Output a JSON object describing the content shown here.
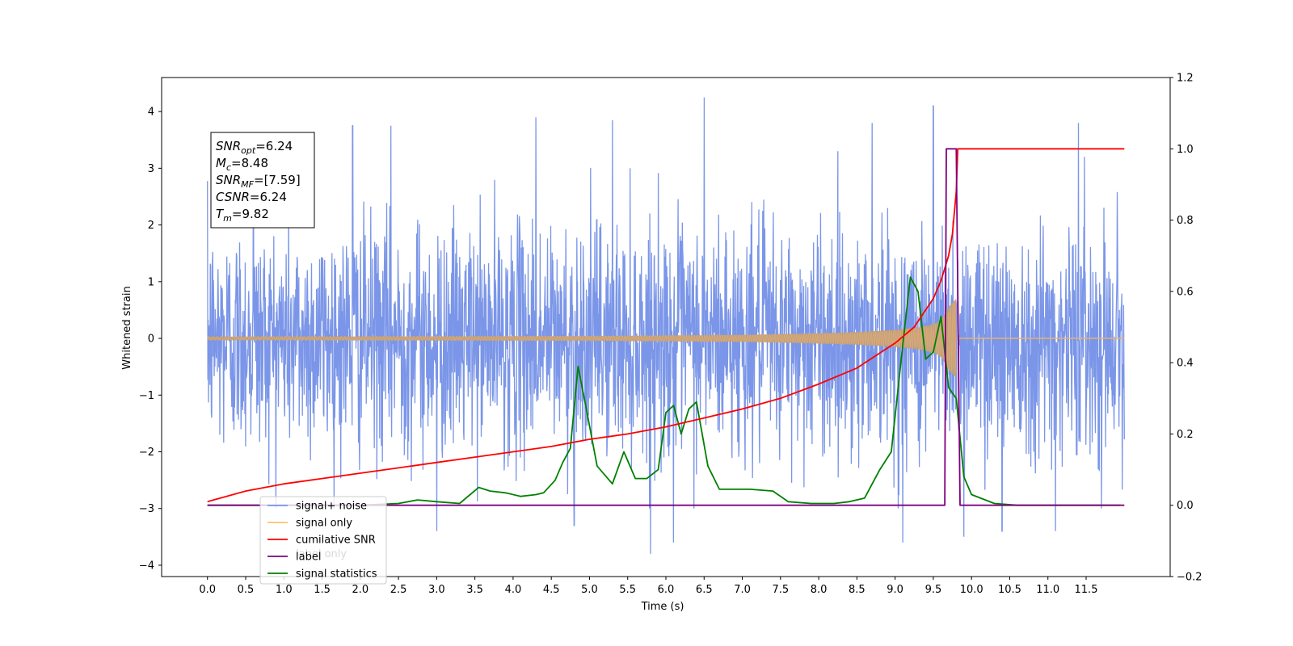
{
  "chart_data": {
    "type": "line",
    "xlabel": "Time (s)",
    "ylabel": "Whitened strain",
    "xlim": [
      -0.6,
      12.6
    ],
    "ylim": [
      -4.2,
      4.6
    ],
    "y2lim": [
      -0.2,
      1.2
    ],
    "x_ticks": [
      "0.0",
      "0.5",
      "1.0",
      "1.5",
      "2.0",
      "2.5",
      "3.0",
      "3.5",
      "4.0",
      "4.5",
      "5.0",
      "5.5",
      "6.0",
      "6.5",
      "7.0",
      "7.5",
      "8.0",
      "8.5",
      "9.0",
      "9.5",
      "10.0",
      "10.5",
      "11.0",
      "11.5"
    ],
    "y_ticks": [
      "4",
      "3",
      "2",
      "1",
      "0",
      "−1",
      "−2",
      "−3",
      "−4"
    ],
    "y2_ticks": [
      "1.2",
      "1.0",
      "0.8",
      "0.6",
      "0.4",
      "0.2",
      "0.0",
      "−0.2"
    ],
    "info_box": [
      {
        "name": "SNR",
        "sub": "opt",
        "value": "=6.24"
      },
      {
        "name": "M",
        "sub": "c",
        "value": "=8.48"
      },
      {
        "name": "SNR",
        "sub": "MF",
        "value": "=[7.59]"
      },
      {
        "name": "CSNR",
        "sub": "",
        "value": "=6.24"
      },
      {
        "name": "T",
        "sub": "m",
        "value": "=9.82"
      }
    ],
    "legend": {
      "placement": "lower-left",
      "items": [
        {
          "label": "signal+ noise",
          "color": "#7b96e8"
        },
        {
          "label": "signal only",
          "color": "#ffc36b"
        },
        {
          "label": "cumilative SNR",
          "color": "#ff0000"
        },
        {
          "label": "label",
          "color": "#800080"
        },
        {
          "label": "signal statistics",
          "color": "#008000"
        }
      ],
      "hidden_behind": "label only"
    },
    "series": [
      {
        "name": "signal+ noise",
        "axis": "left",
        "style": "noise",
        "x_range": [
          0.0,
          12.0
        ],
        "envelope_typical": [
          -2.6,
          3.0
        ],
        "x": [
          0.6,
          1.9,
          2.4,
          4.3,
          5.3,
          6.5,
          8.7,
          9.5,
          11.4,
          5.8,
          6.1,
          4.8,
          3.0,
          9.1,
          9.9,
          10.4,
          11.1
        ],
        "y": [
          3.5,
          3.75,
          3.75,
          3.9,
          3.85,
          4.25,
          3.8,
          4.1,
          3.8,
          -3.8,
          -3.6,
          -3.3,
          -3.4,
          -3.6,
          -3.5,
          -3.4,
          -3.4
        ]
      },
      {
        "name": "signal only",
        "axis": "left",
        "x": [
          0.0,
          5.0,
          7.0,
          8.0,
          8.5,
          9.0,
          9.3,
          9.5,
          9.6,
          9.7,
          9.8
        ],
        "amplitude": [
          0.03,
          0.04,
          0.06,
          0.09,
          0.11,
          0.15,
          0.19,
          0.25,
          0.32,
          0.55,
          0.7
        ]
      },
      {
        "name": "cumilative SNR",
        "axis": "right",
        "x": [
          0.0,
          0.5,
          1.0,
          1.5,
          2.0,
          2.5,
          3.0,
          3.5,
          4.0,
          4.5,
          5.0,
          5.5,
          6.0,
          6.5,
          7.0,
          7.5,
          8.0,
          8.5,
          9.0,
          9.25,
          9.5,
          9.6,
          9.7,
          9.75,
          9.8,
          9.82,
          12.0
        ],
        "y": [
          0.01,
          0.04,
          0.06,
          0.075,
          0.09,
          0.105,
          0.12,
          0.135,
          0.15,
          0.165,
          0.185,
          0.2,
          0.22,
          0.245,
          0.27,
          0.3,
          0.34,
          0.385,
          0.455,
          0.5,
          0.58,
          0.63,
          0.7,
          0.76,
          0.88,
          1.0,
          1.0
        ]
      },
      {
        "name": "label",
        "axis": "right",
        "x": [
          0.0,
          9.65,
          9.67,
          9.8,
          9.85,
          12.0
        ],
        "y": [
          0.0,
          0.0,
          1.0,
          1.0,
          0.0,
          0.0
        ]
      },
      {
        "name": "signal statistics",
        "axis": "right",
        "x": [
          0.0,
          2.0,
          2.5,
          2.75,
          3.0,
          3.3,
          3.55,
          3.7,
          3.9,
          4.1,
          4.3,
          4.4,
          4.55,
          4.65,
          4.75,
          4.85,
          4.95,
          5.1,
          5.3,
          5.45,
          5.6,
          5.75,
          5.9,
          6.0,
          6.1,
          6.2,
          6.3,
          6.4,
          6.55,
          6.7,
          6.9,
          7.1,
          7.4,
          7.6,
          7.9,
          8.2,
          8.4,
          8.6,
          8.8,
          8.95,
          9.1,
          9.2,
          9.3,
          9.4,
          9.5,
          9.6,
          9.7,
          9.8,
          9.9,
          10.0,
          10.3,
          10.6,
          11.0,
          11.5,
          11.95
        ],
        "y": [
          0.0,
          0.0,
          0.005,
          0.015,
          0.01,
          0.005,
          0.05,
          0.04,
          0.035,
          0.025,
          0.03,
          0.035,
          0.07,
          0.12,
          0.16,
          0.39,
          0.28,
          0.11,
          0.06,
          0.15,
          0.075,
          0.075,
          0.1,
          0.26,
          0.28,
          0.2,
          0.27,
          0.29,
          0.11,
          0.045,
          0.045,
          0.045,
          0.04,
          0.01,
          0.005,
          0.005,
          0.01,
          0.02,
          0.1,
          0.15,
          0.45,
          0.64,
          0.6,
          0.41,
          0.43,
          0.53,
          0.33,
          0.3,
          0.08,
          0.03,
          0.005,
          0.0,
          0.0,
          0.0,
          0.0
        ]
      }
    ]
  }
}
